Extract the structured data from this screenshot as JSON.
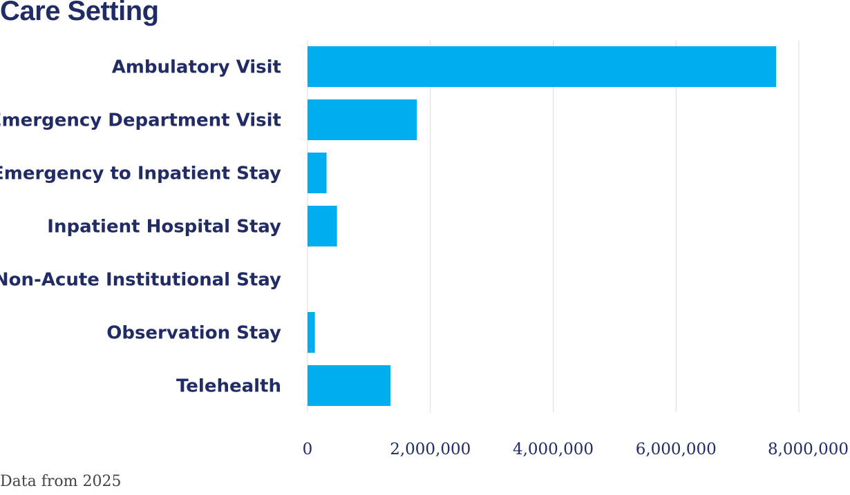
{
  "chart_data": {
    "type": "bar",
    "orientation": "horizontal",
    "title": "Care Setting",
    "categories": [
      "Ambulatory Visit",
      "Emergency Department Visit",
      "Emergency to Inpatient Stay",
      "Inpatient Hospital Stay",
      "Non-Acute Institutional Stay",
      "Observation Stay",
      "Telehealth"
    ],
    "values": [
      7630000,
      1780000,
      310000,
      480000,
      0,
      120000,
      1350000
    ],
    "xlim": [
      0,
      8000000
    ],
    "xticks": [
      "0",
      "2,000,000",
      "4,000,000",
      "6,000,000",
      "8,000,000"
    ],
    "xlabel": "",
    "ylabel": "",
    "grid": true,
    "colors": {
      "bar": "#00adee",
      "text": "#212b64",
      "grid": "#dcdcdc"
    }
  },
  "footnote": "Data from 2025"
}
